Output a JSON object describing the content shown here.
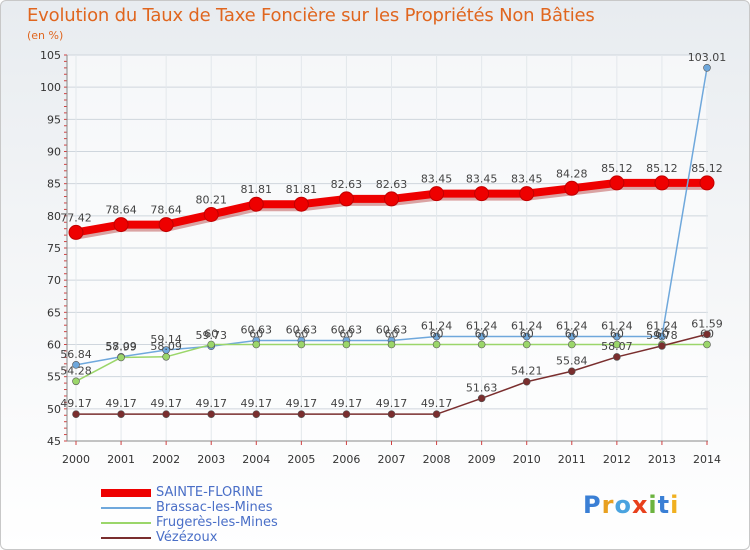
{
  "title": "Evolution du Taux de Taxe Foncière sur les Propriétés Non Bâties",
  "unit_label": "(en %)",
  "logo": {
    "text": "Proxiti",
    "letters": [
      {
        "ch": "P",
        "color": "#3a7fd5"
      },
      {
        "ch": "r",
        "color": "#e8a020"
      },
      {
        "ch": "o",
        "color": "#4aa3df"
      },
      {
        "ch": "x",
        "color": "#e8401c"
      },
      {
        "ch": "i",
        "color": "#6cb33f"
      },
      {
        "ch": "t",
        "color": "#3a7fd5"
      },
      {
        "ch": "i",
        "color": "#f0b020"
      }
    ]
  },
  "chart_data": {
    "type": "line",
    "title": "Evolution du Taux de Taxe Foncière sur les Propriétés Non Bâties",
    "ylabel": "(en %)",
    "xlabel": "",
    "categories": [
      "2000",
      "2001",
      "2002",
      "2003",
      "2004",
      "2005",
      "2006",
      "2007",
      "2008",
      "2009",
      "2010",
      "2011",
      "2012",
      "2013",
      "2014"
    ],
    "ylim": [
      45,
      105
    ],
    "yticks": [
      45,
      50,
      55,
      60,
      65,
      70,
      75,
      80,
      85,
      90,
      95,
      100,
      105
    ],
    "grid": true,
    "legend_position": "bottom-left",
    "series": [
      {
        "name": "SAINTE-FLORINE",
        "color": "#ee0000",
        "style": "bold",
        "values": [
          77.42,
          78.64,
          78.64,
          80.21,
          81.81,
          81.81,
          82.63,
          82.63,
          83.45,
          83.45,
          83.45,
          84.28,
          85.12,
          85.12,
          85.12
        ],
        "labels": [
          "77.42",
          "78.64",
          "78.64",
          "80.21",
          "81.81",
          "81.81",
          "82.63",
          "82.63",
          "83.45",
          "83.45",
          "83.45",
          "84.28",
          "85.12",
          "85.12",
          "85.12"
        ]
      },
      {
        "name": "Brassac-les-Mines",
        "color": "#6fa8dc",
        "style": "thin",
        "values": [
          56.84,
          58.09,
          59.14,
          59.73,
          60.63,
          60.63,
          60.63,
          60.63,
          61.24,
          61.24,
          61.24,
          61.24,
          61.24,
          61.24,
          103.01
        ],
        "labels": [
          "56.84",
          "58.09",
          "59.14",
          "59.73",
          "60.63",
          "60.63",
          "60.63",
          "60.63",
          "61.24",
          "61.24",
          "61.24",
          "61.24",
          "61.24",
          "61.24",
          "103.01"
        ]
      },
      {
        "name": "Frugerès-les-Mines",
        "color": "#9bd66a",
        "style": "thin",
        "values": [
          54.28,
          57.99,
          58.09,
          60,
          60,
          60,
          60,
          60,
          60,
          60,
          60,
          60,
          60,
          60,
          60
        ],
        "labels": [
          "54.28",
          "57.99",
          "58.09",
          "60",
          "60",
          "60",
          "60",
          "60",
          "60",
          "60",
          "60",
          "60",
          "60",
          "60",
          "60"
        ]
      },
      {
        "name": "Vézézoux",
        "color": "#7a2e2e",
        "style": "thin",
        "values": [
          49.17,
          49.17,
          49.17,
          49.17,
          49.17,
          49.17,
          49.17,
          49.17,
          49.17,
          51.63,
          54.21,
          55.84,
          58.07,
          59.78,
          61.59
        ],
        "labels": [
          "49.17",
          "49.17",
          "49.17",
          "49.17",
          "49.17",
          "49.17",
          "49.17",
          "49.17",
          "49.17",
          "51.63",
          "54.21",
          "55.84",
          "58.07",
          "59.78",
          "61.59"
        ]
      }
    ]
  }
}
